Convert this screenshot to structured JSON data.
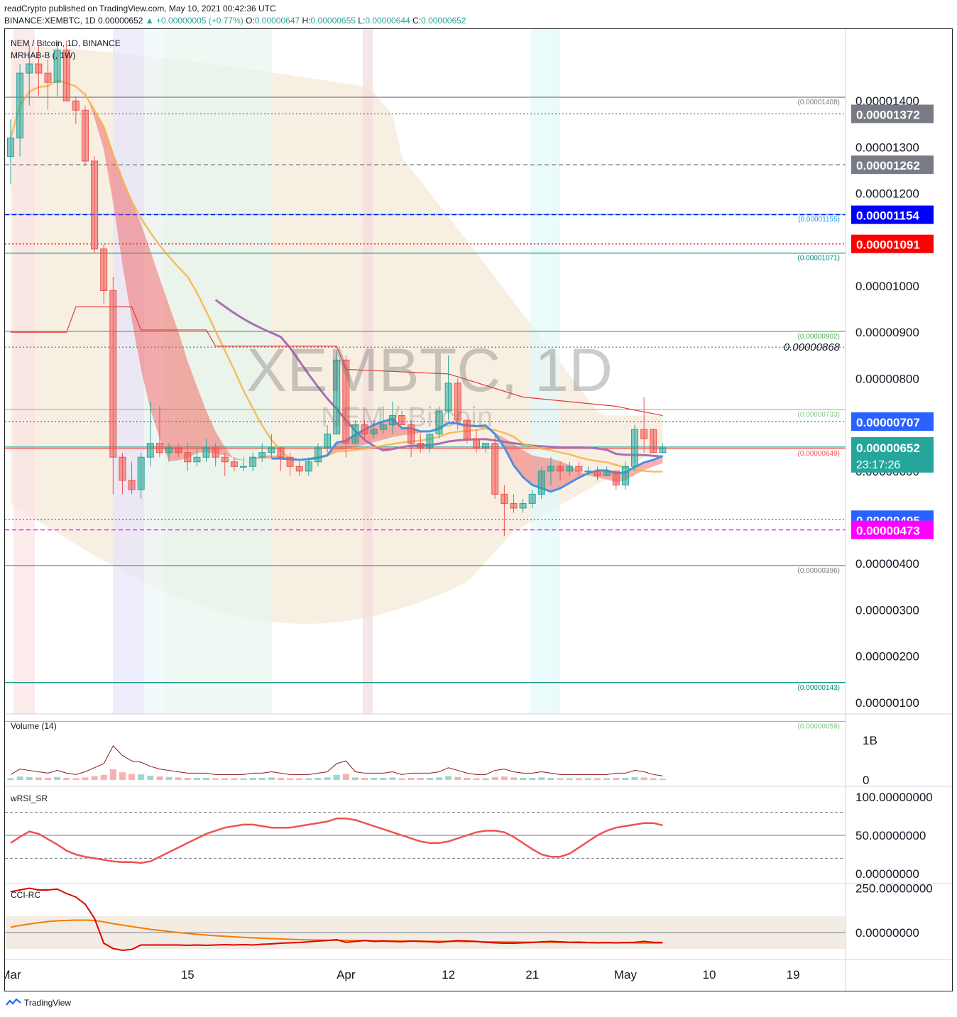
{
  "header": {
    "published": "readCrypto published on TradingView.com, May 10, 2021 00:42:36 UTC",
    "symbol": "BINANCE:XEMBTC, 1D",
    "last": "0.00000652",
    "change": "▲ +0.00000005 (+0.77%)",
    "o_label": "O:",
    "o": "0.00000647",
    "h_label": "H:",
    "h": "0.00000655",
    "l_label": "L:",
    "l": "0.00000644",
    "c_label": "C:",
    "c": "0.00000652"
  },
  "legend": {
    "name": "NEM / Bitcoin, 1D, BINANCE",
    "indicator": "MRHAB-B (, 1W)"
  },
  "watermark": {
    "symbol": "XEMBTC, 1D",
    "name": "NEM / Bitcoin"
  },
  "footer": {
    "brand": "TradingView"
  },
  "colors": {
    "up": "#26a69a",
    "down": "#ef5350",
    "sma_purple": "#a86fb4",
    "blue_line": "#4a90e2",
    "orange_line": "#f7b347",
    "cloud": "#f6ead9"
  },
  "chart_data": {
    "type": "candlestick",
    "y_axis": {
      "scale": "linear",
      "range": [
        3e-07,
        1.5e-06
      ],
      "tick_labels": [
        "0.00001400",
        "0.00001300",
        "0.00001200",
        "0.00001000",
        "0.00000900",
        "0.00000800",
        "0.00000600",
        "0.00000400",
        "0.00000300",
        "0.00000200",
        "0.00000100"
      ],
      "tick_values": [
        1.4e-05,
        1.3e-05,
        1.2e-05,
        1e-05,
        9e-06,
        8e-06,
        6e-06,
        4e-06,
        3e-06,
        2e-06,
        1e-06
      ]
    },
    "x_axis": {
      "tick_labels": [
        "Mar",
        "15",
        "Apr",
        "12",
        "21",
        "May",
        "10",
        "19"
      ],
      "tick_days": [
        -5,
        14,
        31,
        42,
        51,
        61,
        70,
        79
      ]
    },
    "price_tags": [
      {
        "label": "0.00001372",
        "value": 1.372e-05,
        "color": "#787b86",
        "style": "dotted"
      },
      {
        "label": "0.00001262",
        "value": 1.262e-05,
        "color": "#787b86",
        "style": "dashed"
      },
      {
        "label": "0.00001154",
        "value": 1.154e-05,
        "color": "#0000ff",
        "style": "dashed"
      },
      {
        "label": "0.00001091",
        "value": 1.091e-05,
        "color": "#ff0000",
        "style": "dotted"
      },
      {
        "label": "0.00000707",
        "value": 7.07e-06,
        "color": "#2962ff",
        "style": "dotted"
      },
      {
        "label": "0.00000652",
        "value": 6.52e-06,
        "color": "#26a69a",
        "style": "solid",
        "countdown": "23:17:26"
      },
      {
        "label": "0.00000495",
        "value": 4.95e-06,
        "color": "#2962ff",
        "style": "dotted"
      },
      {
        "label": "0.00000473",
        "value": 4.73e-06,
        "color": "#ff00ff",
        "style": "dashed"
      }
    ],
    "levels": [
      {
        "label": "(0.00001408)",
        "value": 1.408e-05,
        "color": "#787b86"
      },
      {
        "label": "(0.00001155)",
        "value": 1.155e-05,
        "color": "#2196f3"
      },
      {
        "label": "(0.00001071)",
        "value": 1.071e-05,
        "color": "#00897b"
      },
      {
        "label": "(0.00000902)",
        "value": 9.02e-06,
        "color": "#4caf50"
      },
      {
        "label": "(0.00000733)",
        "value": 7.33e-06,
        "color": "#81c784"
      },
      {
        "label": "(0.00000649)",
        "value": 6.49e-06,
        "color": "#ef5350"
      },
      {
        "label": "(0.00000396)",
        "value": 3.96e-06,
        "color": "#787b86"
      },
      {
        "label": "(0.00000143)",
        "value": 1.43e-06,
        "color": "#00897b"
      },
      {
        "label": "(0.00000059)",
        "value": 5.9e-07,
        "color": "#81c784"
      }
    ],
    "annotation": {
      "label": "0.00000868",
      "value": 8.68e-06
    },
    "candles": [
      [
        1.28e-05,
        1.36e-05,
        1.22e-05,
        1.32e-05
      ],
      [
        1.32e-05,
        1.48e-05,
        1.28e-05,
        1.46e-05
      ],
      [
        1.46e-05,
        1.52e-05,
        1.39e-05,
        1.48e-05
      ],
      [
        1.48e-05,
        1.52e-05,
        1.41e-05,
        1.46e-05
      ],
      [
        1.46e-05,
        1.49e-05,
        1.38e-05,
        1.44e-05
      ],
      [
        1.44e-05,
        1.53e-05,
        1.41e-05,
        1.51e-05
      ],
      [
        1.51e-05,
        1.53e-05,
        1.4e-05,
        1.4e-05
      ],
      [
        1.4e-05,
        1.41e-05,
        1.35e-05,
        1.38e-05
      ],
      [
        1.38e-05,
        1.39e-05,
        1.26e-05,
        1.27e-05
      ],
      [
        1.27e-05,
        1.28e-05,
        1.07e-05,
        1.08e-05
      ],
      [
        1.08e-05,
        1.09e-05,
        9.6e-06,
        9.9e-06
      ],
      [
        9.9e-06,
        1.02e-05,
        5.5e-06,
        6.3e-06
      ],
      [
        6.3e-06,
        6.4e-06,
        5.5e-06,
        5.8e-06
      ],
      [
        5.8e-06,
        6.2e-06,
        5.5e-06,
        5.6e-06
      ],
      [
        5.6e-06,
        6.4e-06,
        5.4e-06,
        6.3e-06
      ],
      [
        6.3e-06,
        7.5e-06,
        6.1e-06,
        6.6e-06
      ],
      [
        6.6e-06,
        7.4e-06,
        6.3e-06,
        6.4e-06
      ],
      [
        6.4e-06,
        6.6e-06,
        6.2e-06,
        6.5e-06
      ],
      [
        6.5e-06,
        6.6e-06,
        6.3e-06,
        6.4e-06
      ],
      [
        6.4e-06,
        6.6e-06,
        6e-06,
        6.2e-06
      ],
      [
        6.2e-06,
        6.5e-06,
        6.1e-06,
        6.3e-06
      ],
      [
        6.3e-06,
        6.7e-06,
        6.2e-06,
        6.5e-06
      ],
      [
        6.5e-06,
        6.6e-06,
        6.1e-06,
        6.3e-06
      ],
      [
        6.3e-06,
        6.4e-06,
        5.9e-06,
        6.2e-06
      ],
      [
        6.2e-06,
        6.3e-06,
        6e-06,
        6.1e-06
      ],
      [
        6.1e-06,
        6.3e-06,
        6e-06,
        6.1e-06
      ],
      [
        6.1e-06,
        6.4e-06,
        6e-06,
        6.3e-06
      ],
      [
        6.3e-06,
        6.6e-06,
        6.2e-06,
        6.4e-06
      ],
      [
        6.4e-06,
        6.8e-06,
        6.3e-06,
        6.5e-06
      ],
      [
        6.5e-06,
        6.5e-06,
        6e-06,
        6.3e-06
      ],
      [
        6.3e-06,
        6.4e-06,
        5.9e-06,
        6.1e-06
      ],
      [
        6.1e-06,
        6.2e-06,
        5.9e-06,
        6e-06
      ],
      [
        6e-06,
        6.3e-06,
        5.9e-06,
        6.2e-06
      ],
      [
        6.2e-06,
        6.6e-06,
        6.1e-06,
        6.5e-06
      ],
      [
        6.5e-06,
        7e-06,
        6.4e-06,
        6.8e-06
      ],
      [
        6.8e-06,
        8.6e-06,
        6.8e-06,
        8.4e-06
      ],
      [
        8.4e-06,
        8.5e-06,
        6.3e-06,
        6.6e-06
      ],
      [
        6.6e-06,
        7.1e-06,
        6.6e-06,
        7e-06
      ],
      [
        7e-06,
        7.1e-06,
        6.7e-06,
        6.8e-06
      ],
      [
        6.8e-06,
        7.1e-06,
        6.7e-06,
        6.9e-06
      ],
      [
        6.9e-06,
        7.4e-06,
        6.8e-06,
        7e-06
      ],
      [
        7e-06,
        7.5e-06,
        6.8e-06,
        7.2e-06
      ],
      [
        7.2e-06,
        7.3e-06,
        7e-06,
        7e-06
      ],
      [
        7e-06,
        7.1e-06,
        6.3e-06,
        6.6e-06
      ],
      [
        6.6e-06,
        6.8e-06,
        6.4e-06,
        6.5e-06
      ],
      [
        6.5e-06,
        6.8e-06,
        6.4e-06,
        6.8e-06
      ],
      [
        6.8e-06,
        7.4e-06,
        6.7e-06,
        7.3e-06
      ],
      [
        7.3e-06,
        8.5e-06,
        7.1e-06,
        7.9e-06
      ],
      [
        7.9e-06,
        8e-06,
        6.9e-06,
        7.1e-06
      ],
      [
        7.1e-06,
        7.1e-06,
        6.6e-06,
        6.7e-06
      ],
      [
        6.7e-06,
        6.9e-06,
        6.4e-06,
        6.5e-06
      ],
      [
        6.5e-06,
        6.6e-06,
        6.4e-06,
        6.6e-06
      ],
      [
        6.6e-06,
        6.8e-06,
        5.4e-06,
        5.5e-06
      ],
      [
        5.5e-06,
        5.7e-06,
        4.6e-06,
        5.3e-06
      ],
      [
        5.3e-06,
        5.5e-06,
        5.1e-06,
        5.2e-06
      ],
      [
        5.2e-06,
        5.4e-06,
        5.1e-06,
        5.3e-06
      ],
      [
        5.3e-06,
        5.6e-06,
        5.2e-06,
        5.5e-06
      ],
      [
        5.5e-06,
        6.1e-06,
        5.4e-06,
        6e-06
      ],
      [
        6e-06,
        6.3e-06,
        5.7e-06,
        6.1e-06
      ],
      [
        6.1e-06,
        6.2e-06,
        5.8e-06,
        6e-06
      ],
      [
        6e-06,
        6.2e-06,
        5.9e-06,
        6.1e-06
      ],
      [
        6.1e-06,
        6.2e-06,
        5.9e-06,
        6e-06
      ],
      [
        6e-06,
        6.1e-06,
        5.9e-06,
        6e-06
      ],
      [
        6e-06,
        6.1e-06,
        5.8e-06,
        5.9e-06
      ],
      [
        5.9e-06,
        6.1e-06,
        5.9e-06,
        6e-06
      ],
      [
        6e-06,
        6e-06,
        5.6e-06,
        5.7e-06
      ],
      [
        5.7e-06,
        6.2e-06,
        5.6e-06,
        6.1e-06
      ],
      [
        6.1e-06,
        7e-06,
        6e-06,
        6.9e-06
      ],
      [
        6.9e-06,
        7.6e-06,
        6.4e-06,
        6.7e-06
      ],
      [
        6.9e-06,
        6.9e-06,
        6.4e-06,
        6.4e-06
      ],
      [
        6.4e-06,
        6.6e-06,
        6.4e-06,
        6.5e-06
      ]
    ],
    "pane_labels": [
      "Volume (14)",
      "wRSI_SR",
      "CCI-RC"
    ],
    "volume": {
      "axis_labels": [
        "1B",
        "0"
      ],
      "axis_values": [
        1,
        0
      ],
      "values": [
        0.04,
        0.08,
        0.07,
        0.06,
        0.05,
        0.07,
        0.05,
        0.04,
        0.06,
        0.09,
        0.12,
        0.25,
        0.18,
        0.14,
        0.13,
        0.1,
        0.08,
        0.07,
        0.06,
        0.05,
        0.05,
        0.05,
        0.04,
        0.04,
        0.04,
        0.04,
        0.05,
        0.05,
        0.06,
        0.05,
        0.04,
        0.04,
        0.04,
        0.05,
        0.06,
        0.12,
        0.14,
        0.06,
        0.05,
        0.05,
        0.05,
        0.06,
        0.04,
        0.05,
        0.05,
        0.05,
        0.06,
        0.09,
        0.07,
        0.05,
        0.04,
        0.04,
        0.07,
        0.08,
        0.06,
        0.05,
        0.05,
        0.06,
        0.05,
        0.04,
        0.04,
        0.04,
        0.04,
        0.04,
        0.04,
        0.05,
        0.05,
        0.07,
        0.06,
        0.04,
        0.03
      ]
    },
    "wrsi": {
      "axis_labels": [
        "100.00000000",
        "50.00000000",
        "0.00000000"
      ],
      "axis_values": [
        100,
        50,
        0
      ],
      "values": [
        40,
        48,
        55,
        52,
        45,
        38,
        30,
        25,
        22,
        20,
        18,
        16,
        15,
        15,
        14,
        16,
        22,
        28,
        34,
        40,
        46,
        52,
        56,
        60,
        62,
        64,
        64,
        62,
        60,
        60,
        60,
        62,
        64,
        66,
        68,
        72,
        72,
        70,
        66,
        62,
        58,
        54,
        50,
        46,
        42,
        40,
        40,
        42,
        46,
        50,
        54,
        56,
        56,
        54,
        48,
        40,
        32,
        25,
        22,
        22,
        26,
        34,
        42,
        50,
        56,
        60,
        62,
        64,
        66,
        66,
        63
      ]
    },
    "cci": {
      "axis_labels": [
        "250.00000000",
        "0.00000000"
      ],
      "axis_values": [
        250,
        0
      ],
      "values": [
        230,
        240,
        250,
        240,
        240,
        245,
        220,
        200,
        160,
        80,
        -60,
        -90,
        -100,
        -95,
        -70,
        -70,
        -70,
        -70,
        -70,
        -72,
        -70,
        -72,
        -70,
        -68,
        -70,
        -68,
        -70,
        -66,
        -64,
        -60,
        -58,
        -56,
        -52,
        -48,
        -45,
        -40,
        -55,
        -50,
        -45,
        -50,
        -48,
        -50,
        -52,
        -48,
        -50,
        -52,
        -55,
        -50,
        -46,
        -48,
        -50,
        -55,
        -58,
        -60,
        -60,
        -58,
        -56,
        -52,
        -50,
        -52,
        -55,
        -54,
        -56,
        -58,
        -56,
        -58,
        -56,
        -55,
        -50,
        -55,
        -56
      ],
      "signal": [
        30,
        40,
        48,
        55,
        62,
        66,
        68,
        70,
        70,
        68,
        60,
        50,
        42,
        34,
        26,
        18,
        12,
        6,
        0,
        -5,
        -10,
        -14,
        -18,
        -21,
        -24,
        -27,
        -30,
        -32,
        -34,
        -36,
        -38,
        -40,
        -41,
        -42,
        -43,
        -44,
        -44,
        -45,
        -45,
        -46,
        -46,
        -47,
        -47,
        -48,
        -48,
        -49,
        -49,
        -50,
        -50,
        -51,
        -51,
        -52,
        -52,
        -53,
        -53,
        -54,
        -54,
        -55,
        -55,
        -56,
        -56,
        -57,
        -57,
        -57,
        -58,
        -58,
        -58,
        -58,
        -59,
        -59,
        -59
      ]
    }
  }
}
